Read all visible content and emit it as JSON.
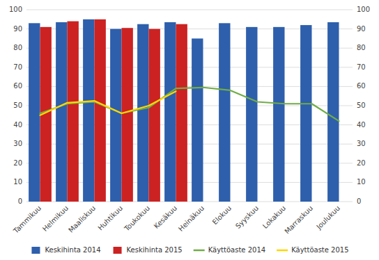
{
  "chart_data": {
    "type": "bar",
    "categories": [
      "Tammikuu",
      "Helmikuu",
      "Maaliskuu",
      "Huhtikuu",
      "Toukokuu",
      "Kesäkuu",
      "Heinäkuu",
      "Elokuu",
      "Syyskuu",
      "Lokakuu",
      "Marraskuu",
      "Joulukuu"
    ],
    "series": [
      {
        "name": "Keskihinta 2014",
        "type": "bar",
        "color": "#2E5FAC",
        "values": [
          93,
          93.5,
          95,
          90,
          92.5,
          93.5,
          85,
          93,
          91,
          91,
          92,
          93.5
        ]
      },
      {
        "name": "Keskihinta 2015",
        "type": "bar",
        "color": "#CC2222",
        "values": [
          91,
          94,
          95,
          90.5,
          90,
          92.5,
          null,
          null,
          null,
          null,
          null,
          null
        ]
      },
      {
        "name": "Käyttöaste 2014",
        "type": "line",
        "color": "#70AD47",
        "axis": "y2",
        "values": [
          46,
          51,
          52,
          46,
          49,
          59,
          59.5,
          58,
          52,
          51,
          51,
          42
        ]
      },
      {
        "name": "Käyttöaste 2015",
        "type": "line",
        "color": "#FFD700",
        "axis": "y2",
        "values": [
          45,
          51.5,
          52.5,
          46,
          50,
          57.5,
          null,
          null,
          null,
          null,
          null,
          null
        ]
      }
    ],
    "ylim": [
      0,
      100
    ],
    "yticks": [
      0,
      10,
      20,
      30,
      40,
      50,
      60,
      70,
      80,
      90,
      100
    ],
    "y2lim": [
      0,
      100
    ],
    "y2ticks": [
      0,
      10,
      20,
      30,
      40,
      50,
      60,
      70,
      80,
      90,
      100
    ],
    "grid": true,
    "legend": "bottom"
  }
}
